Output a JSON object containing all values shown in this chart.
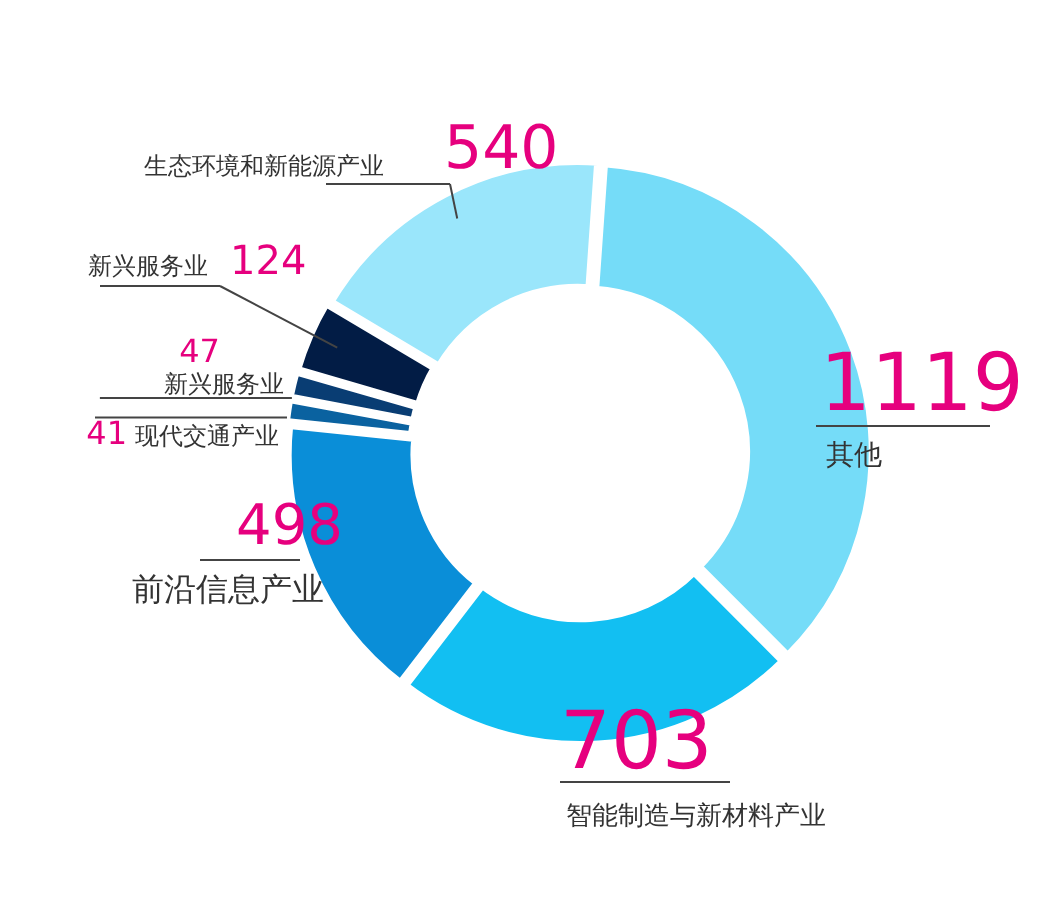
{
  "chart_data": {
    "type": "donut",
    "categories": [
      "其他",
      "智能制造与新材料产业",
      "前沿信息产业",
      "现代交通产业",
      "新兴服务业",
      "新兴服务业",
      "生态环境和新能源产业"
    ],
    "values": [
      1119,
      703,
      498,
      41,
      47,
      124,
      540
    ],
    "colors": [
      "#75dcf8",
      "#12bff2",
      "#0a8ed8",
      "#0a62a0",
      "#093d73",
      "#021c45",
      "#9ae6fb"
    ],
    "data_labels": true
  }
}
